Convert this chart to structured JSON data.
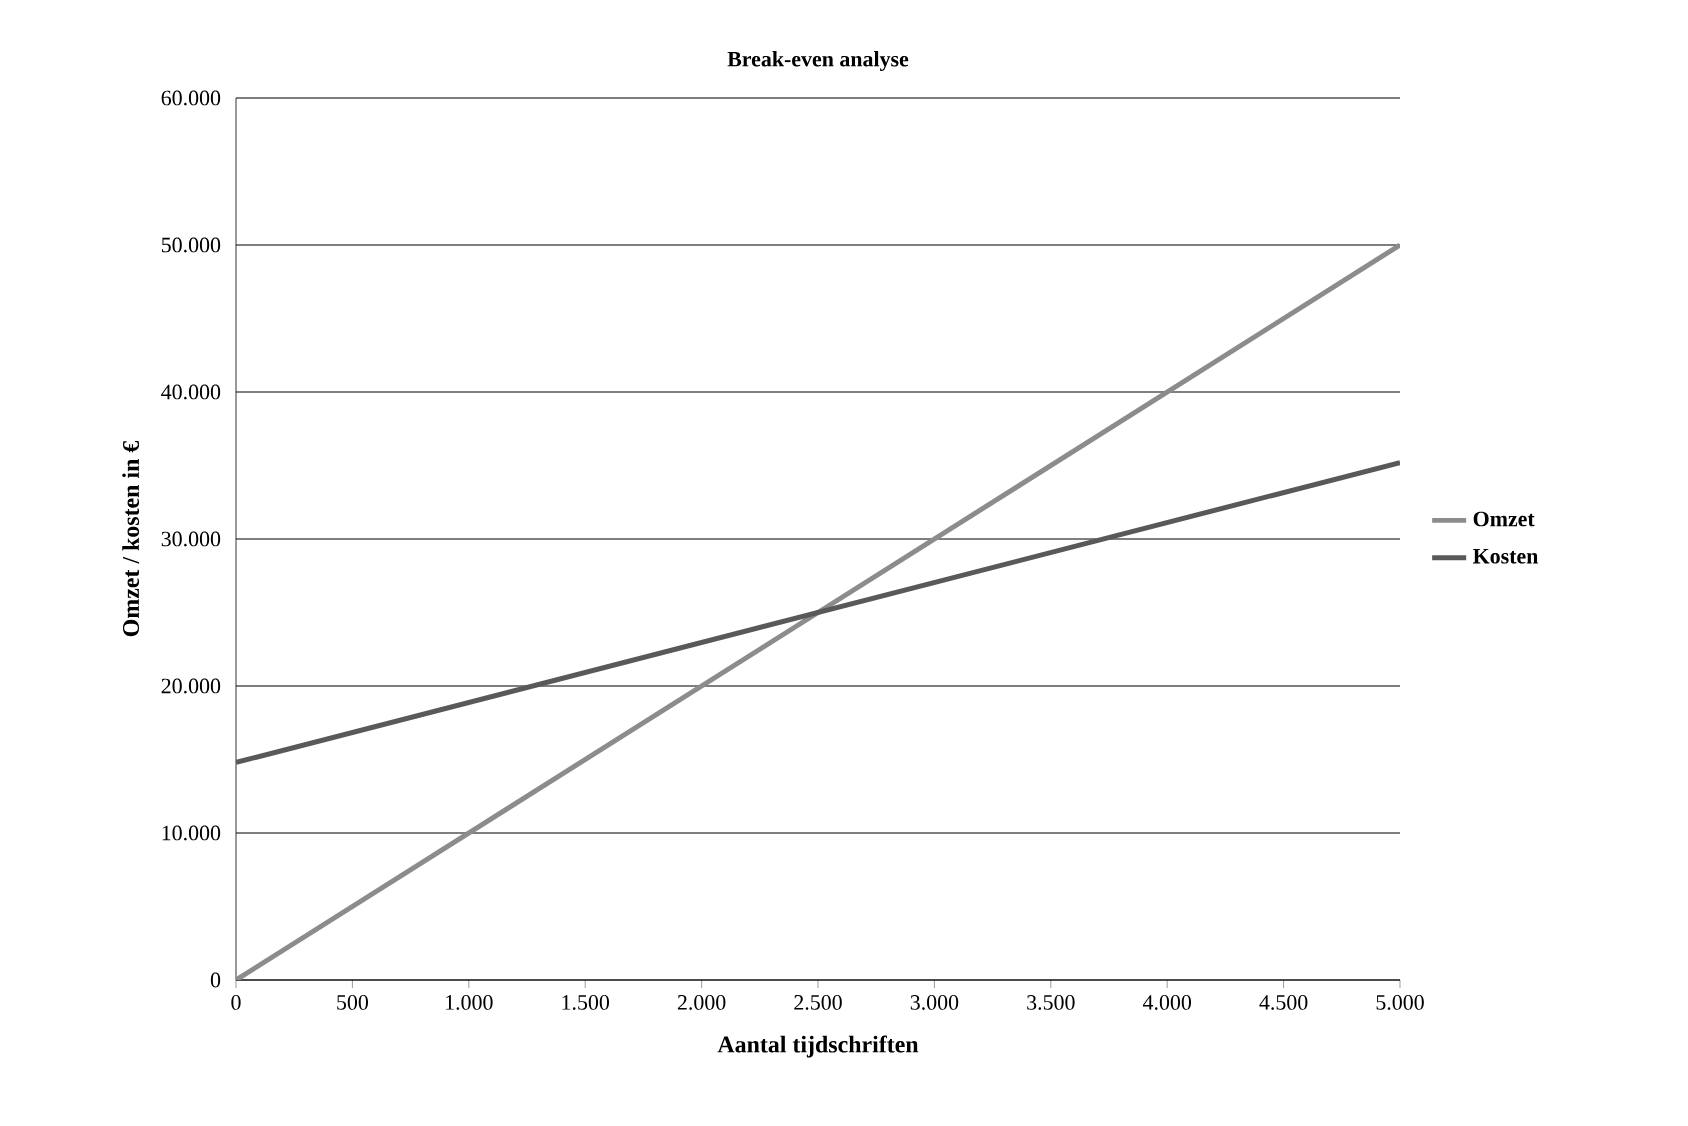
{
  "chart_data": {
    "type": "line",
    "title": "Break-even analyse",
    "xlabel": "Aantal tijdschriften",
    "ylabel": "Omzet / kosten in €",
    "x": [
      0,
      5000
    ],
    "series": [
      {
        "name": "Omzet",
        "color": "#8c8c8c",
        "values": [
          0,
          50000
        ]
      },
      {
        "name": "Kosten",
        "color": "#595959",
        "values": [
          14800,
          35200
        ]
      }
    ],
    "xlim": [
      0,
      5000
    ],
    "ylim": [
      0,
      60000
    ],
    "xticks": [
      0,
      500,
      {
        "value": 1000,
        "label": "1.000"
      },
      {
        "value": 1500,
        "label": "1.500"
      },
      {
        "value": 2000,
        "label": "2.000"
      },
      {
        "value": 2500,
        "label": "2.500"
      },
      {
        "value": 3000,
        "label": "3.000"
      },
      {
        "value": 3500,
        "label": "3.500"
      },
      {
        "value": 4000,
        "label": "4.000"
      },
      {
        "value": 4500,
        "label": "4.500"
      },
      {
        "value": 5000,
        "label": "5.000"
      }
    ],
    "yticks": [
      0,
      {
        "value": 10000,
        "label": "10.000"
      },
      {
        "value": 20000,
        "label": "20.000"
      },
      {
        "value": 30000,
        "label": "30.000"
      },
      {
        "value": 40000,
        "label": "40.000"
      },
      {
        "value": 50000,
        "label": "50.000"
      },
      {
        "value": 60000,
        "label": "60.000"
      }
    ],
    "grid": "y",
    "legend": "right",
    "marker": "none",
    "line_style": "solid"
  }
}
